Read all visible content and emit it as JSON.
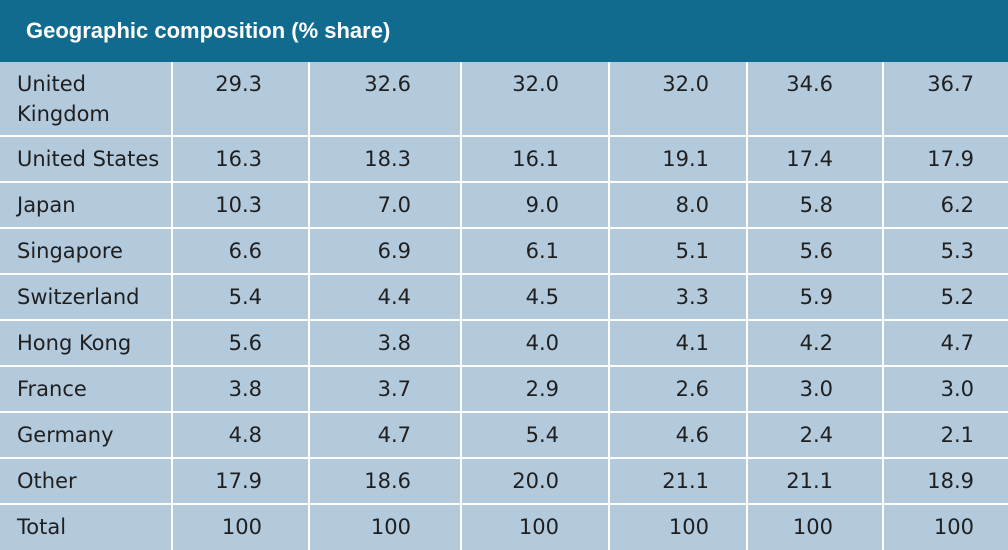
{
  "title": "Geographic composition (% share)",
  "rows": [
    {
      "label": "United Kingdom",
      "values": [
        "29.3",
        "32.6",
        "32.0",
        "32.0",
        "34.6",
        "36.7"
      ]
    },
    {
      "label": "United States",
      "values": [
        "16.3",
        "18.3",
        "16.1",
        "19.1",
        "17.4",
        "17.9"
      ]
    },
    {
      "label": "Japan",
      "values": [
        "10.3",
        "7.0",
        "9.0",
        "8.0",
        "5.8",
        "6.2"
      ]
    },
    {
      "label": "Singapore",
      "values": [
        "6.6",
        "6.9",
        "6.1",
        "5.1",
        "5.6",
        "5.3"
      ]
    },
    {
      "label": "Switzerland",
      "values": [
        "5.4",
        "4.4",
        "4.5",
        "3.3",
        "5.9",
        "5.2"
      ]
    },
    {
      "label": "Hong Kong",
      "values": [
        "5.6",
        "3.8",
        "4.0",
        "4.1",
        "4.2",
        "4.7"
      ]
    },
    {
      "label": "France",
      "values": [
        "3.8",
        "3.7",
        "2.9",
        "2.6",
        "3.0",
        "3.0"
      ]
    },
    {
      "label": "Germany",
      "values": [
        "4.8",
        "4.7",
        "5.4",
        "4.6",
        "2.4",
        "2.1"
      ]
    },
    {
      "label": "Other",
      "values": [
        "17.9",
        "18.6",
        "20.0",
        "21.1",
        "21.1",
        "18.9"
      ]
    },
    {
      "label": "Total",
      "values": [
        "100",
        "100",
        "100",
        "100",
        "100",
        "100"
      ]
    }
  ],
  "colors": {
    "header_bg": "#116b8f",
    "cell_bg": "#b3c9dc",
    "grid": "#ffffff"
  }
}
